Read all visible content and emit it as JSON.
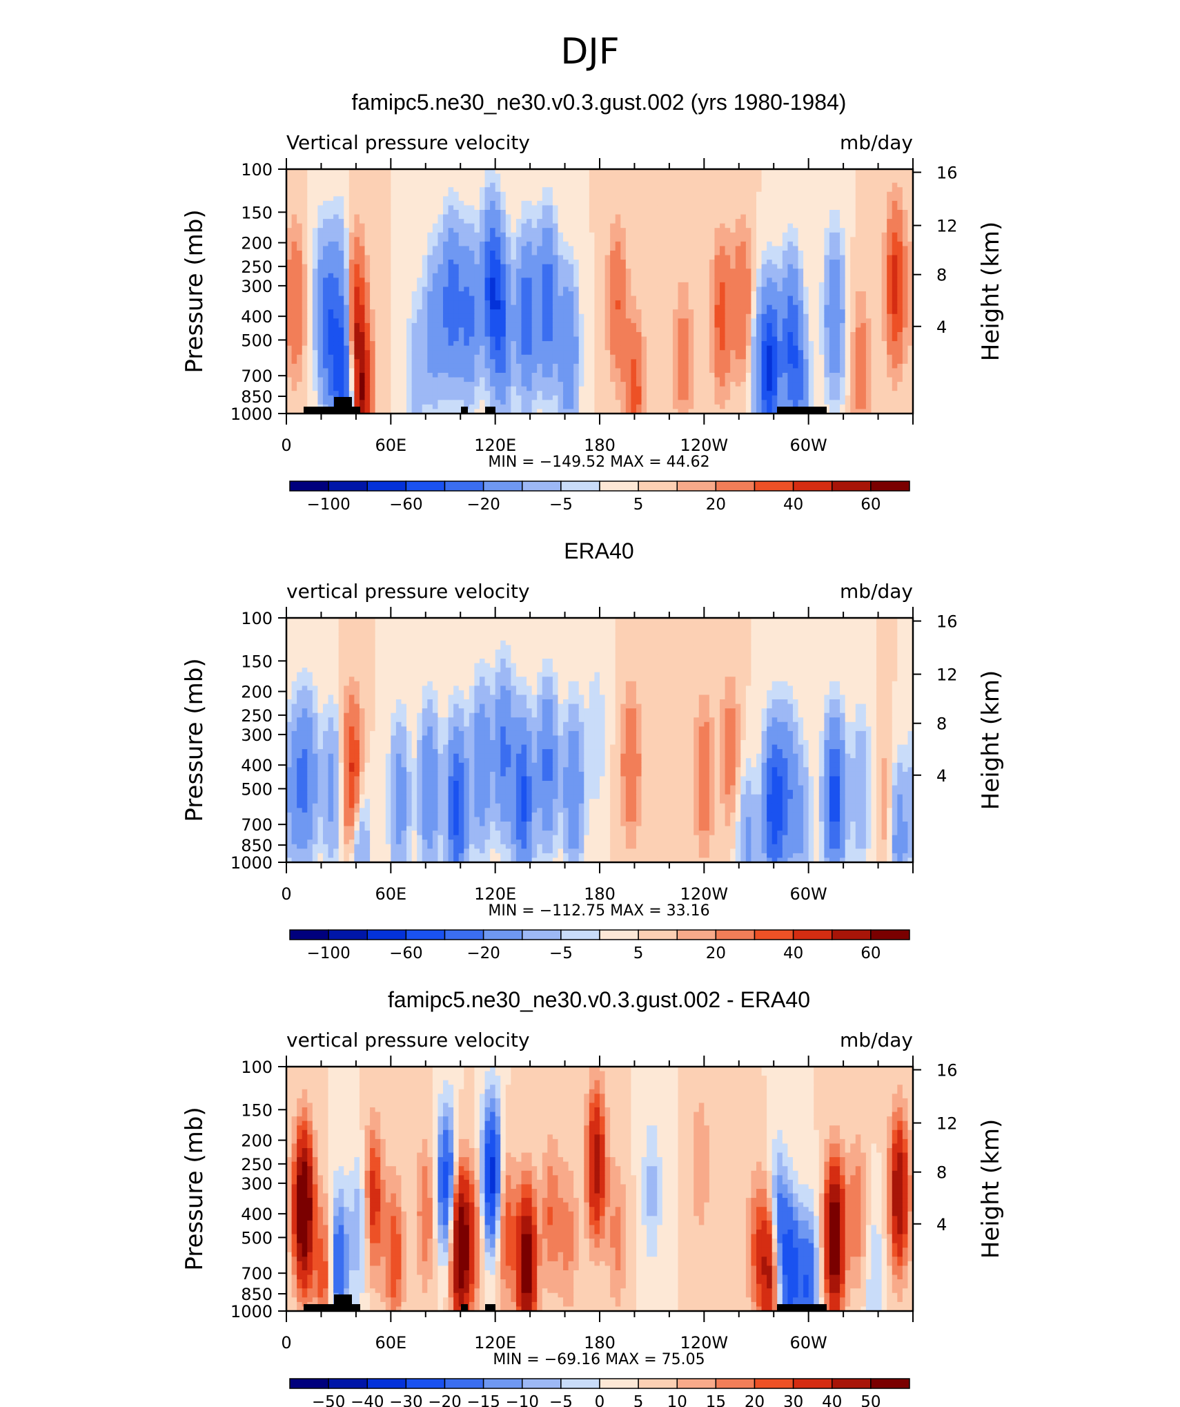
{
  "main_title": "DJF",
  "chart_data": [
    {
      "type": "heatmap",
      "panel_title": "famipc5.ne30_ne30.v0.3.gust.002 (yrs 1980-1984)",
      "variable_label": "Vertical pressure velocity",
      "units": "mb/day",
      "ylabel": "Pressure (mb)",
      "y2label": "Height (km)",
      "y_ticks": [
        "100",
        "150",
        "200",
        "250",
        "300",
        "400",
        "500",
        "700",
        "850",
        "1000"
      ],
      "y2_ticks": [
        "16",
        "12",
        "8",
        "4"
      ],
      "x_ticks": [
        "0",
        "60E",
        "120E",
        "180",
        "120W",
        "60W"
      ],
      "stats": "MIN = −149.52   MAX =  44.62",
      "min": -149.52,
      "max": 44.62,
      "colorbar_labels": [
        "−100",
        "−60",
        "−20",
        "−5",
        "5",
        "20",
        "40",
        "60"
      ],
      "colorbar_levels": [
        -120,
        -100,
        -80,
        -60,
        -40,
        -20,
        -10,
        -5,
        0,
        5,
        10,
        20,
        30,
        40,
        50,
        60
      ],
      "topography": true,
      "grid": false,
      "anomalies": [
        {
          "lon": 5,
          "p": 350,
          "v": 20
        },
        {
          "lon": 20,
          "p": 300,
          "v": -10
        },
        {
          "lon": 24,
          "p": 450,
          "v": -50
        },
        {
          "lon": 31,
          "p": 300,
          "v": -20
        },
        {
          "lon": 32,
          "p": 750,
          "v": -70
        },
        {
          "lon": 40,
          "p": 400,
          "v": 35
        },
        {
          "lon": 44,
          "p": 900,
          "v": 45
        },
        {
          "lon": 75,
          "p": 650,
          "v": -15
        },
        {
          "lon": 85,
          "p": 450,
          "v": -30
        },
        {
          "lon": 95,
          "p": 350,
          "v": -55
        },
        {
          "lon": 105,
          "p": 400,
          "v": -45
        },
        {
          "lon": 118,
          "p": 300,
          "v": -70
        },
        {
          "lon": 124,
          "p": 450,
          "v": -50
        },
        {
          "lon": 138,
          "p": 400,
          "v": -55
        },
        {
          "lon": 150,
          "p": 350,
          "v": -55
        },
        {
          "lon": 162,
          "p": 550,
          "v": -40
        },
        {
          "lon": 190,
          "p": 350,
          "v": 20
        },
        {
          "lon": 200,
          "p": 850,
          "v": 25
        },
        {
          "lon": 228,
          "p": 600,
          "v": 15
        },
        {
          "lon": 250,
          "p": 400,
          "v": 25
        },
        {
          "lon": 262,
          "p": 350,
          "v": 20
        },
        {
          "lon": 272,
          "p": 700,
          "v": -20
        },
        {
          "lon": 278,
          "p": 650,
          "v": -80
        },
        {
          "lon": 290,
          "p": 500,
          "v": -55
        },
        {
          "lon": 295,
          "p": 850,
          "v": -30
        },
        {
          "lon": 315,
          "p": 400,
          "v": -40
        },
        {
          "lon": 330,
          "p": 650,
          "v": 15
        },
        {
          "lon": 350,
          "p": 300,
          "v": 35
        }
      ]
    },
    {
      "type": "heatmap",
      "panel_title": "ERA40",
      "variable_label": "vertical pressure velocity",
      "units": "mb/day",
      "ylabel": "Pressure (mb)",
      "y2label": "Height (km)",
      "y_ticks": [
        "100",
        "150",
        "200",
        "250",
        "300",
        "400",
        "500",
        "700",
        "850",
        "1000"
      ],
      "y2_ticks": [
        "16",
        "12",
        "8",
        "4"
      ],
      "x_ticks": [
        "0",
        "60E",
        "120E",
        "180",
        "120W",
        "60W"
      ],
      "stats": "MIN = −112.75   MAX =  33.16",
      "min": -112.75,
      "max": 33.16,
      "colorbar_labels": [
        "−100",
        "−60",
        "−20",
        "−5",
        "5",
        "20",
        "40",
        "60"
      ],
      "colorbar_levels": [
        -120,
        -100,
        -80,
        -60,
        -40,
        -20,
        -10,
        -5,
        0,
        5,
        10,
        20,
        30,
        40,
        50,
        60
      ],
      "topography": false,
      "grid": false,
      "anomalies": [
        {
          "lon": 5,
          "p": 500,
          "v": -30
        },
        {
          "lon": 12,
          "p": 450,
          "v": -40
        },
        {
          "lon": 26,
          "p": 500,
          "v": -25
        },
        {
          "lon": 38,
          "p": 450,
          "v": 35
        },
        {
          "lon": 42,
          "p": 900,
          "v": -25
        },
        {
          "lon": 65,
          "p": 550,
          "v": -30
        },
        {
          "lon": 82,
          "p": 500,
          "v": -40
        },
        {
          "lon": 98,
          "p": 600,
          "v": -70
        },
        {
          "lon": 112,
          "p": 400,
          "v": -40
        },
        {
          "lon": 125,
          "p": 350,
          "v": -45
        },
        {
          "lon": 136,
          "p": 550,
          "v": -65
        },
        {
          "lon": 150,
          "p": 400,
          "v": -45
        },
        {
          "lon": 165,
          "p": 500,
          "v": -40
        },
        {
          "lon": 178,
          "p": 300,
          "v": -10
        },
        {
          "lon": 198,
          "p": 400,
          "v": 20
        },
        {
          "lon": 240,
          "p": 450,
          "v": 18
        },
        {
          "lon": 255,
          "p": 350,
          "v": 15
        },
        {
          "lon": 265,
          "p": 900,
          "v": -25
        },
        {
          "lon": 280,
          "p": 600,
          "v": -75
        },
        {
          "lon": 288,
          "p": 500,
          "v": -35
        },
        {
          "lon": 296,
          "p": 700,
          "v": -20
        },
        {
          "lon": 315,
          "p": 550,
          "v": -70
        },
        {
          "lon": 330,
          "p": 500,
          "v": -20
        },
        {
          "lon": 345,
          "p": 600,
          "v": 10
        },
        {
          "lon": 352,
          "p": 800,
          "v": -30
        }
      ]
    },
    {
      "type": "heatmap",
      "panel_title": "famipc5.ne30_ne30.v0.3.gust.002 - ERA40",
      "variable_label": "vertical pressure velocity",
      "units": "mb/day",
      "ylabel": "Pressure (mb)",
      "y2label": "Height (km)",
      "y_ticks": [
        "100",
        "150",
        "200",
        "250",
        "300",
        "400",
        "500",
        "700",
        "850",
        "1000"
      ],
      "y2_ticks": [
        "16",
        "12",
        "8",
        "4"
      ],
      "x_ticks": [
        "0",
        "60E",
        "120E",
        "180",
        "120W",
        "60W"
      ],
      "stats": "MIN =  −69.16   MAX =   75.05",
      "min": -69.16,
      "max": 75.05,
      "colorbar_labels": [
        "−50",
        "−40",
        "−30",
        "−20",
        "−15",
        "−10",
        "−5",
        "0",
        "5",
        "10",
        "15",
        "20",
        "30",
        "40",
        "50"
      ],
      "colorbar_levels": [
        -60,
        -50,
        -40,
        -30,
        -20,
        -15,
        -10,
        -5,
        0,
        5,
        10,
        15,
        20,
        30,
        40,
        50
      ],
      "topography": true,
      "grid": false,
      "anomalies": [
        {
          "lon": 10,
          "p": 380,
          "v": 60
        },
        {
          "lon": 22,
          "p": 700,
          "v": 20
        },
        {
          "lon": 30,
          "p": 650,
          "v": -30
        },
        {
          "lon": 42,
          "p": 450,
          "v": -15
        },
        {
          "lon": 50,
          "p": 350,
          "v": 25
        },
        {
          "lon": 62,
          "p": 600,
          "v": 20
        },
        {
          "lon": 80,
          "p": 400,
          "v": 15
        },
        {
          "lon": 92,
          "p": 300,
          "v": -35
        },
        {
          "lon": 100,
          "p": 550,
          "v": 55
        },
        {
          "lon": 108,
          "p": 500,
          "v": 15
        },
        {
          "lon": 118,
          "p": 280,
          "v": -45
        },
        {
          "lon": 126,
          "p": 450,
          "v": 20
        },
        {
          "lon": 138,
          "p": 650,
          "v": 50
        },
        {
          "lon": 152,
          "p": 400,
          "v": 15
        },
        {
          "lon": 162,
          "p": 500,
          "v": 12
        },
        {
          "lon": 178,
          "p": 250,
          "v": 35
        },
        {
          "lon": 190,
          "p": 500,
          "v": 12
        },
        {
          "lon": 210,
          "p": 320,
          "v": -12
        },
        {
          "lon": 238,
          "p": 250,
          "v": 10
        },
        {
          "lon": 270,
          "p": 550,
          "v": 15
        },
        {
          "lon": 278,
          "p": 650,
          "v": 40
        },
        {
          "lon": 282,
          "p": 450,
          "v": -30
        },
        {
          "lon": 290,
          "p": 700,
          "v": -35
        },
        {
          "lon": 300,
          "p": 800,
          "v": -30
        },
        {
          "lon": 315,
          "p": 500,
          "v": 55
        },
        {
          "lon": 328,
          "p": 400,
          "v": 15
        },
        {
          "lon": 338,
          "p": 750,
          "v": -10
        },
        {
          "lon": 352,
          "p": 330,
          "v": 40
        }
      ]
    }
  ]
}
